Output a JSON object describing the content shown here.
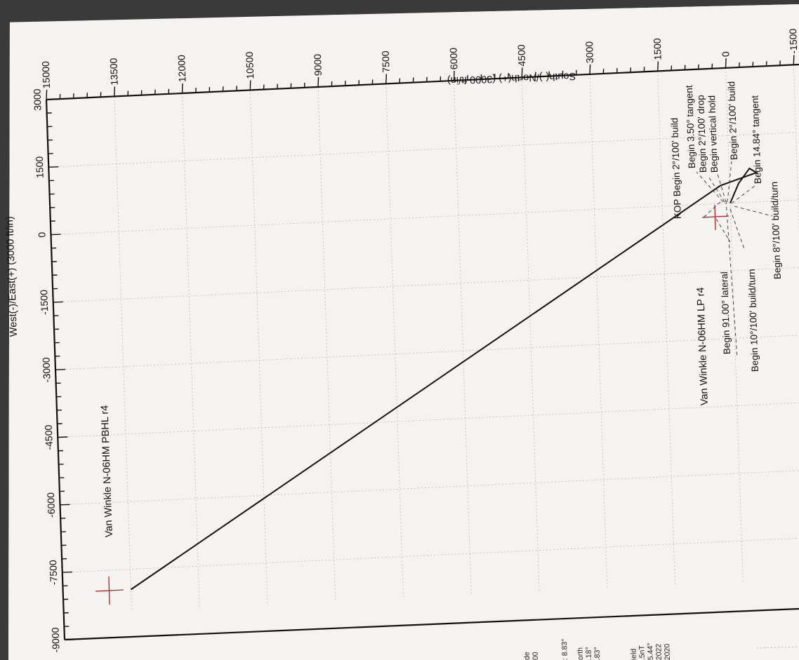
{
  "axes": {
    "x_axis_title": "South(-)/North(+) (3000 ft/in)",
    "y_axis_title": "West(-)/East(+) (3000 ft/in)",
    "x_ticks": [
      "15000",
      "13500",
      "12000",
      "10500",
      "9000",
      "7500",
      "6000",
      "4500",
      "3000",
      "1500",
      "0",
      "-1500"
    ],
    "y_ticks": [
      "3000",
      "1500",
      "0",
      "-1500",
      "-3000",
      "-4500",
      "-6000",
      "-7500",
      "-9000"
    ]
  },
  "chart_data": {
    "type": "line",
    "x_range": [
      15000,
      -1500
    ],
    "y_range": [
      3000,
      -9000
    ],
    "series": [
      {
        "points": [
          {
            "ns": 0,
            "ew": 0
          },
          {
            "ns": -200,
            "ew": 430
          },
          {
            "ns": -450,
            "ew": 750
          },
          {
            "ns": -600,
            "ew": 650
          },
          {
            "ns": 200,
            "ew": 400
          },
          {
            "ns": 13500,
            "ew": -7950
          }
        ]
      }
    ],
    "targets": [
      {
        "label": "Van Winkle N-06HM LP r4",
        "ns": 200,
        "ew": 400
      },
      {
        "label": "Van Winkle N-06HM PBHL r4",
        "ns": 13500,
        "ew": -7950
      }
    ],
    "annotations": [
      "KOP Begin 2°/100' build",
      "Begin 3.50° tangent",
      "Begin 2°/100' drop",
      "Begin vertical hold",
      "Begin 2°/100' build",
      "Begin 14.84° tangent",
      "Begin 91.00° lateral",
      "Begin 10°/100' build/turn",
      "Begin 8°/100' build/turn"
    ]
  },
  "legend_fragments": {
    "block1": [
      "de",
      "00"
    ],
    "block2": [
      ": 8.83°"
    ],
    "block3": [
      "orth",
      ".18°",
      ".83°"
    ],
    "block4": [
      "ield",
      ".5nT",
      "5.44°",
      "2022",
      "2020"
    ]
  }
}
